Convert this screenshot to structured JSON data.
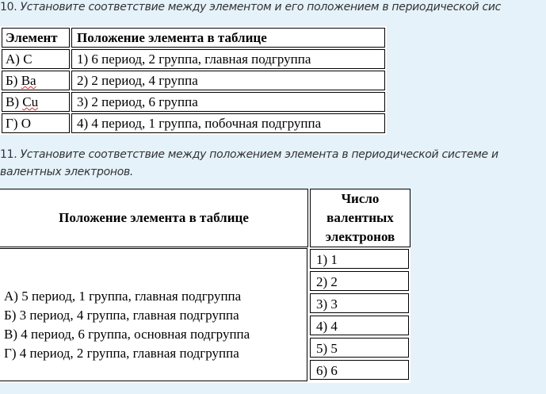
{
  "q10": {
    "number": "10.",
    "text": "Установите соответствие между элементом и его положением в периодической сис"
  },
  "table1": {
    "headers": [
      "Элемент",
      "Положение элемента в таблице"
    ],
    "rows": [
      [
        "А) ",
        "C",
        "1) 6 период, 2 группа, главная подгруппа"
      ],
      [
        "Б) ",
        "Ba",
        "2) 2 период, 4 группа"
      ],
      [
        "В) ",
        "Cu",
        "3) 2 период, 6 группа"
      ],
      [
        "Г) ",
        "O",
        "4) 4 период, 1 группа, побочная подгруппа"
      ]
    ]
  },
  "q11": {
    "number": "11.",
    "line1": "Установите соответствие между положением элемента в периодической системе и",
    "line2": "валентных электронов."
  },
  "table2": {
    "header_left": "Положение элемента в таблице",
    "header_right": [
      "Число",
      "валентных",
      "электронов"
    ],
    "left_items": [
      "А) 5 период, 1 группа, главная подгруппа",
      "Б) 3 период, 4 группа, главная подгруппа",
      "В) 4 период, 6 группа, основная подгруппа",
      "Г) 4 период, 2 группа, главная подгруппа"
    ],
    "right_items": [
      "1) 1",
      "2) 2",
      "3) 3",
      "4) 4",
      "5) 5",
      "6) 6"
    ]
  }
}
